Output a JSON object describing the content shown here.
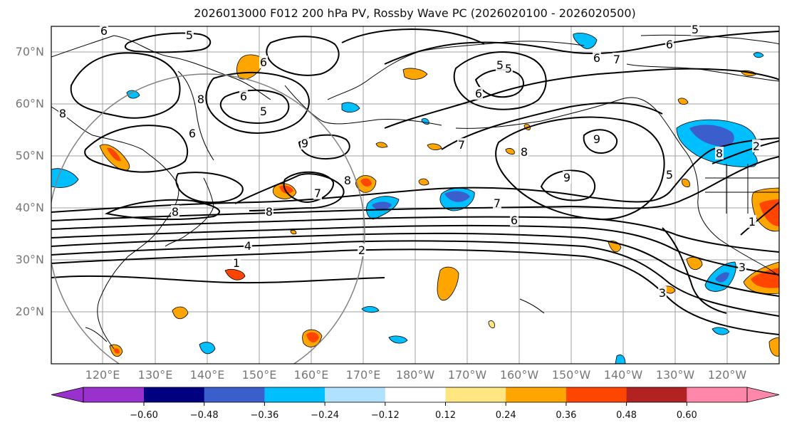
{
  "title": "2026013000 F012 200 hPa PV, Rossby Wave PC (2026020100 - 2026020500)",
  "lat_labels": [
    "70°N",
    "60°N",
    "50°N",
    "40°N",
    "30°N",
    "20°N"
  ],
  "lon_labels": [
    "120°E",
    "130°E",
    "140°E",
    "150°E",
    "160°E",
    "170°E",
    "180°W",
    "170°W",
    "160°W",
    "150°W",
    "140°W",
    "130°W",
    "120°W"
  ],
  "colorbar": {
    "ticks": [
      "−0.60",
      "−0.48",
      "−0.36",
      "−0.24",
      "−0.12",
      "0.12",
      "0.24",
      "0.36",
      "0.48",
      "0.60"
    ],
    "colors": [
      "#9932cc",
      "#000080",
      "#3a5fcd",
      "#00bfff",
      "#b0e2ff",
      "#ffffff",
      "#ffe680",
      "#ffa500",
      "#ff4500",
      "#b22222",
      "#ff88aa"
    ]
  },
  "contour_labels": [
    "5",
    "6",
    "6",
    "6",
    "5",
    "8",
    "6",
    "5",
    "8",
    "9",
    "6",
    "8",
    "7",
    "8",
    "8",
    "7",
    "4",
    "1",
    "2",
    "5",
    "7",
    "6",
    "8",
    "9",
    "9",
    "5",
    "6",
    "7",
    "2",
    "1",
    "3",
    "3",
    "5",
    "6",
    "8"
  ],
  "colors": {
    "frame": "#000000",
    "grid": "#a0a0a0",
    "contour": "#000000",
    "circle": "#808080"
  }
}
